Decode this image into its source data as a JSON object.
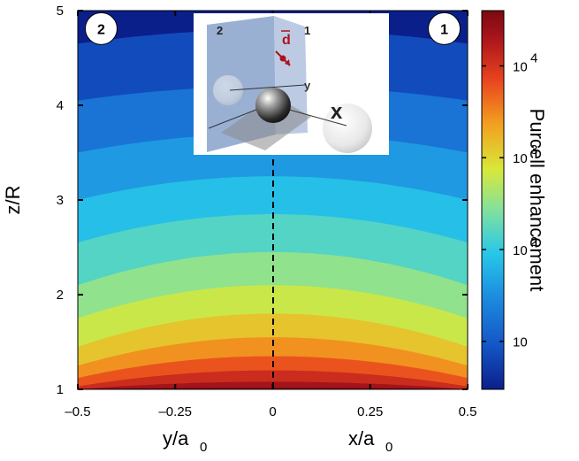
{
  "chart_data": {
    "type": "heatmap",
    "title": "",
    "xlabel_left": "y/a",
    "xlabel_left_sub": "0",
    "xlabel_right": "x/a",
    "xlabel_right_sub": "0",
    "ylabel": "z/R",
    "xlim": [
      -0.5,
      0.5
    ],
    "ylim": [
      1,
      5
    ],
    "x_ticks": [
      -0.5,
      -0.25,
      0,
      0.25,
      0.5
    ],
    "x_tick_labels": [
      "–0.5",
      "–0.25",
      "0",
      "0.25",
      "0.5"
    ],
    "y_ticks": [
      1,
      2,
      3,
      4,
      5
    ],
    "y_tick_labels": [
      "1",
      "2",
      "3",
      "4",
      "5"
    ],
    "z_scale": "log",
    "zlim": [
      3,
      40000
    ],
    "colorbar_label": "Purcell enhancement",
    "colorbar_ticks": [
      10,
      100,
      1000,
      10000
    ],
    "colorbar_tick_labels": [
      {
        "base": "10",
        "exp": ""
      },
      {
        "base": "10",
        "exp": "2"
      },
      {
        "base": "10",
        "exp": "3"
      },
      {
        "base": "10",
        "exp": "4"
      }
    ],
    "region_labels": [
      {
        "text": "2",
        "x": -0.44,
        "z": 4.81
      },
      {
        "text": "1",
        "x": 0.44,
        "z": 4.81
      }
    ],
    "contour_levels": [
      {
        "z_at_center": 1.02,
        "z_at_edge": 1.0,
        "value": 30000
      },
      {
        "z_at_center": 1.08,
        "z_at_edge": 1.0,
        "value": 15000
      },
      {
        "z_at_center": 1.2,
        "z_at_edge": 1.03,
        "value": 8000
      },
      {
        "z_at_center": 1.35,
        "z_at_edge": 1.12,
        "value": 4000
      },
      {
        "z_at_center": 1.55,
        "z_at_edge": 1.25,
        "value": 2000
      },
      {
        "z_at_center": 1.8,
        "z_at_edge": 1.45,
        "value": 1000
      },
      {
        "z_at_center": 2.1,
        "z_at_edge": 1.75,
        "value": 500
      },
      {
        "z_at_center": 2.45,
        "z_at_edge": 2.1,
        "value": 250
      },
      {
        "z_at_center": 2.85,
        "z_at_edge": 2.55,
        "value": 120
      },
      {
        "z_at_center": 3.25,
        "z_at_edge": 3.0,
        "value": 60
      },
      {
        "z_at_center": 3.7,
        "z_at_edge": 3.5,
        "value": 30
      },
      {
        "z_at_center": 4.2,
        "z_at_edge": 4.05,
        "value": 15
      },
      {
        "z_at_center": 4.8,
        "z_at_edge": 4.65,
        "value": 7
      }
    ],
    "inset": {
      "plane_labels": [
        "2",
        "1"
      ],
      "axis_labels": [
        "y",
        "x"
      ],
      "dipole_label": "d"
    }
  },
  "colors": {
    "colormap": [
      "#0b1f8a",
      "#1457c8",
      "#1d8fe0",
      "#28c8e8",
      "#7fe0a0",
      "#d8e83a",
      "#f2a020",
      "#e8421e",
      "#a8141c",
      "#7a0a0e"
    ]
  }
}
